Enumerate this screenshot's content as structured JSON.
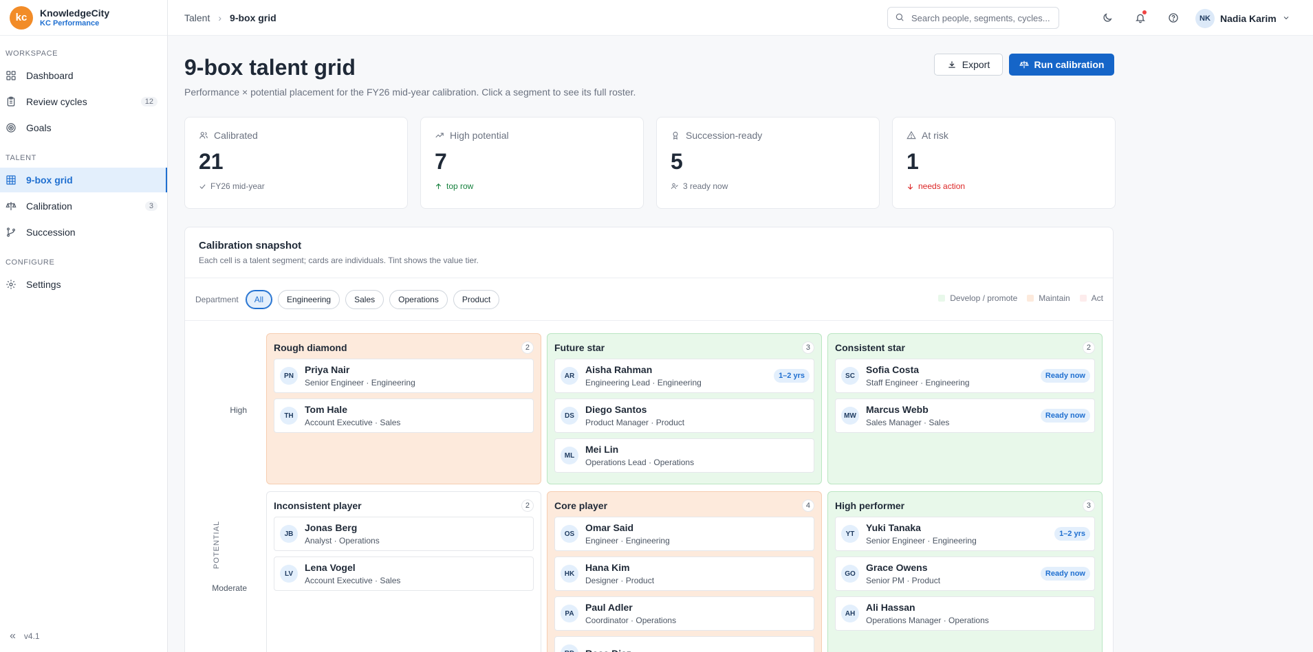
{
  "brand": {
    "logo": "kc",
    "name": "KnowledgeCity",
    "product": "KC Performance"
  },
  "sidebar": {
    "sections": [
      {
        "label": "WORKSPACE",
        "items": [
          {
            "label": "Dashboard",
            "icon": "dashboard-icon"
          },
          {
            "label": "Review cycles",
            "icon": "clipboard-icon",
            "badge": "12"
          },
          {
            "label": "Goals",
            "icon": "target-icon"
          }
        ]
      },
      {
        "label": "TALENT",
        "items": [
          {
            "label": "9-box grid",
            "icon": "grid-icon",
            "active": true
          },
          {
            "label": "Calibration",
            "icon": "scale-icon",
            "badge": "3"
          },
          {
            "label": "Succession",
            "icon": "branch-icon"
          }
        ]
      },
      {
        "label": "CONFIGURE",
        "items": [
          {
            "label": "Settings",
            "icon": "gear-icon"
          }
        ]
      }
    ],
    "version": "v4.1"
  },
  "topbar": {
    "breadcrumb": [
      "Talent",
      "9-box grid"
    ],
    "search_placeholder": "Search people, segments, cycles...",
    "user": {
      "initials": "NK",
      "name": "Nadia Karim"
    }
  },
  "page": {
    "title": "9-box talent grid",
    "subtitle": "Performance × potential placement for the FY26 mid-year calibration. Click a segment to see its full roster.",
    "export_label": "Export",
    "run_label": "Run calibration"
  },
  "stats": [
    {
      "label": "Calibrated",
      "value": "21",
      "foot": "FY26 mid-year",
      "trend": "neutral",
      "icon": "users-icon",
      "foot_icon": "check-icon"
    },
    {
      "label": "High potential",
      "value": "7",
      "foot": "top row",
      "trend": "up",
      "icon": "trending-up-icon",
      "foot_icon": "arrow-up-icon"
    },
    {
      "label": "Succession-ready",
      "value": "5",
      "foot": "3 ready now",
      "trend": "neutral",
      "icon": "award-icon",
      "foot_icon": "user-check-icon"
    },
    {
      "label": "At risk",
      "value": "1",
      "foot": "needs action",
      "trend": "down",
      "icon": "warning-icon",
      "foot_icon": "arrow-down-icon"
    }
  ],
  "snapshot": {
    "title": "Calibration snapshot",
    "subtitle": "Each cell is a talent segment; cards are individuals. Tint shows the value tier.",
    "filter_label": "Department",
    "filters": [
      "All",
      "Engineering",
      "Sales",
      "Operations",
      "Product"
    ],
    "active_filter": "All",
    "legend": [
      {
        "label": "Develop / promote",
        "color": "#e8f8ea"
      },
      {
        "label": "Maintain",
        "color": "#fdeadc"
      },
      {
        "label": "Act",
        "color": "#fdecec"
      }
    ],
    "axis_label": "POTENTIAL",
    "row_labels": [
      "High",
      "Moderate"
    ],
    "cells": [
      {
        "title": "Rough diamond",
        "count": "2",
        "tier": "maintain",
        "people": [
          {
            "initials": "PN",
            "name": "Priya Nair",
            "role": "Senior Engineer · Engineering",
            "tag": ""
          },
          {
            "initials": "TH",
            "name": "Tom Hale",
            "role": "Account Executive · Sales",
            "tag": ""
          }
        ]
      },
      {
        "title": "Future star",
        "count": "3",
        "tier": "develop",
        "people": [
          {
            "initials": "AR",
            "name": "Aisha Rahman",
            "role": "Engineering Lead · Engineering",
            "tag": "1–2 yrs"
          },
          {
            "initials": "DS",
            "name": "Diego Santos",
            "role": "Product Manager · Product",
            "tag": ""
          },
          {
            "initials": "ML",
            "name": "Mei Lin",
            "role": "Operations Lead · Operations",
            "tag": ""
          }
        ]
      },
      {
        "title": "Consistent star",
        "count": "2",
        "tier": "develop",
        "people": [
          {
            "initials": "SC",
            "name": "Sofia Costa",
            "role": "Staff Engineer · Engineering",
            "tag": "Ready now"
          },
          {
            "initials": "MW",
            "name": "Marcus Webb",
            "role": "Sales Manager · Sales",
            "tag": "Ready now"
          }
        ]
      },
      {
        "title": "Inconsistent player",
        "count": "2",
        "tier": "plain",
        "people": [
          {
            "initials": "JB",
            "name": "Jonas Berg",
            "role": "Analyst · Operations",
            "tag": ""
          },
          {
            "initials": "LV",
            "name": "Lena Vogel",
            "role": "Account Executive · Sales",
            "tag": ""
          }
        ]
      },
      {
        "title": "Core player",
        "count": "4",
        "tier": "maintain",
        "people": [
          {
            "initials": "OS",
            "name": "Omar Said",
            "role": "Engineer · Engineering",
            "tag": ""
          },
          {
            "initials": "HK",
            "name": "Hana Kim",
            "role": "Designer · Product",
            "tag": ""
          },
          {
            "initials": "PA",
            "name": "Paul Adler",
            "role": "Coordinator · Operations",
            "tag": ""
          },
          {
            "initials": "RD",
            "name": "Rosa Diaz",
            "role": "",
            "tag": ""
          }
        ]
      },
      {
        "title": "High performer",
        "count": "3",
        "tier": "develop",
        "people": [
          {
            "initials": "YT",
            "name": "Yuki Tanaka",
            "role": "Senior Engineer · Engineering",
            "tag": "1–2 yrs"
          },
          {
            "initials": "GO",
            "name": "Grace Owens",
            "role": "Senior PM · Product",
            "tag": "Ready now"
          },
          {
            "initials": "AH",
            "name": "Ali Hassan",
            "role": "Operations Manager · Operations",
            "tag": ""
          }
        ]
      }
    ]
  }
}
